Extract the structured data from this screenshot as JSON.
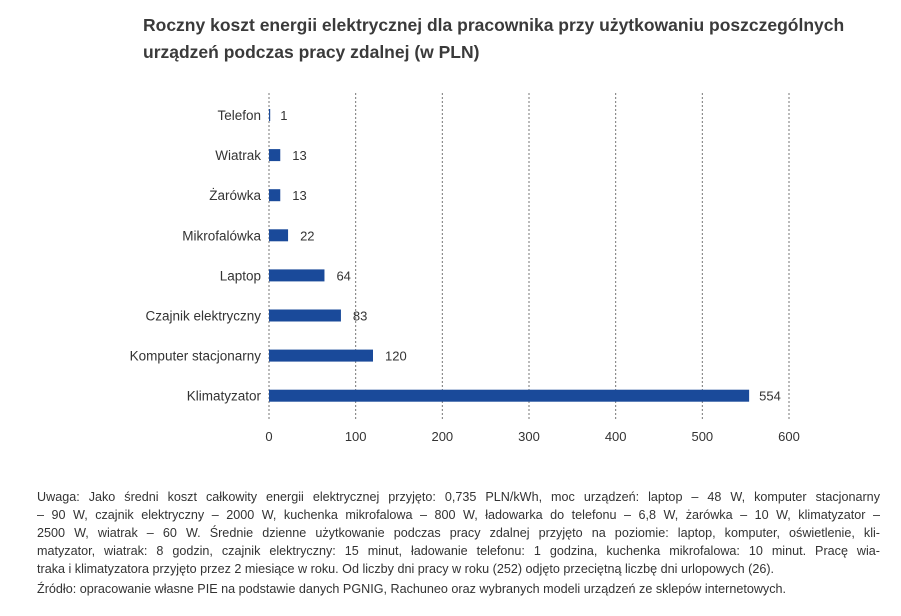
{
  "chart_data": {
    "type": "bar",
    "orientation": "horizontal",
    "title_lines": [
      "Roczny koszt energii elektrycznej dla pracownika przy użytkowaniu poszczególnych",
      "urządzeń podczas pracy zdalnej (w PLN)"
    ],
    "categories": [
      "Telefon",
      "Wiatrak",
      "Żarówka",
      "Mikrofalówka",
      "Laptop",
      "Czajnik elektryczny",
      "Komputer stacjonarny",
      "Klimatyzator"
    ],
    "values": [
      1,
      13,
      13,
      22,
      64,
      83,
      120,
      554
    ],
    "value_labels": [
      "1",
      "13",
      "13",
      "22",
      "64",
      "83",
      "120",
      "554"
    ],
    "xlim": [
      0,
      600
    ],
    "x_ticks": [
      "0",
      "100",
      "200",
      "300",
      "400",
      "500",
      "600"
    ],
    "grid": "vertical dotted",
    "bar_color": "#1a4a9a",
    "xlabel": "",
    "ylabel": ""
  },
  "notes": {
    "lines": [
      "Uwaga: Jako średni koszt całkowity energii elektrycznej przyjęto: 0,735 PLN/kWh, moc urządzeń: laptop – 48 W, komputer stacjonarny",
      "– 90 W, czajnik elektryczny – 2000 W, kuchenka mikrofalowa – 800 W, ładowarka do telefonu – 6,8 W, żarówka – 10 W, klimatyzator –",
      "2500 W, wiatrak – 60 W. Średnie dzienne użytkowanie podczas pracy zdalnej przyjęto na poziomie: laptop, komputer, oświetlenie, kli-",
      "matyzator, wiatrak: 8 godzin, czajnik elektryczny: 15 minut, ładowanie telefonu: 1 godzina, kuchenka mikrofalowa: 10 minut. Pracę wia-",
      "traka i klimatyzatora przyjęto przez 2 miesiące w roku. Od liczby dni pracy w roku (252) odjęto przeciętną liczbę dni urlopowych (26)."
    ],
    "source": "Źródło: opracowanie własne PIE na podstawie danych PGNIG, Rachuneo oraz wybranych modeli urządzeń ze sklepów internetowych."
  }
}
